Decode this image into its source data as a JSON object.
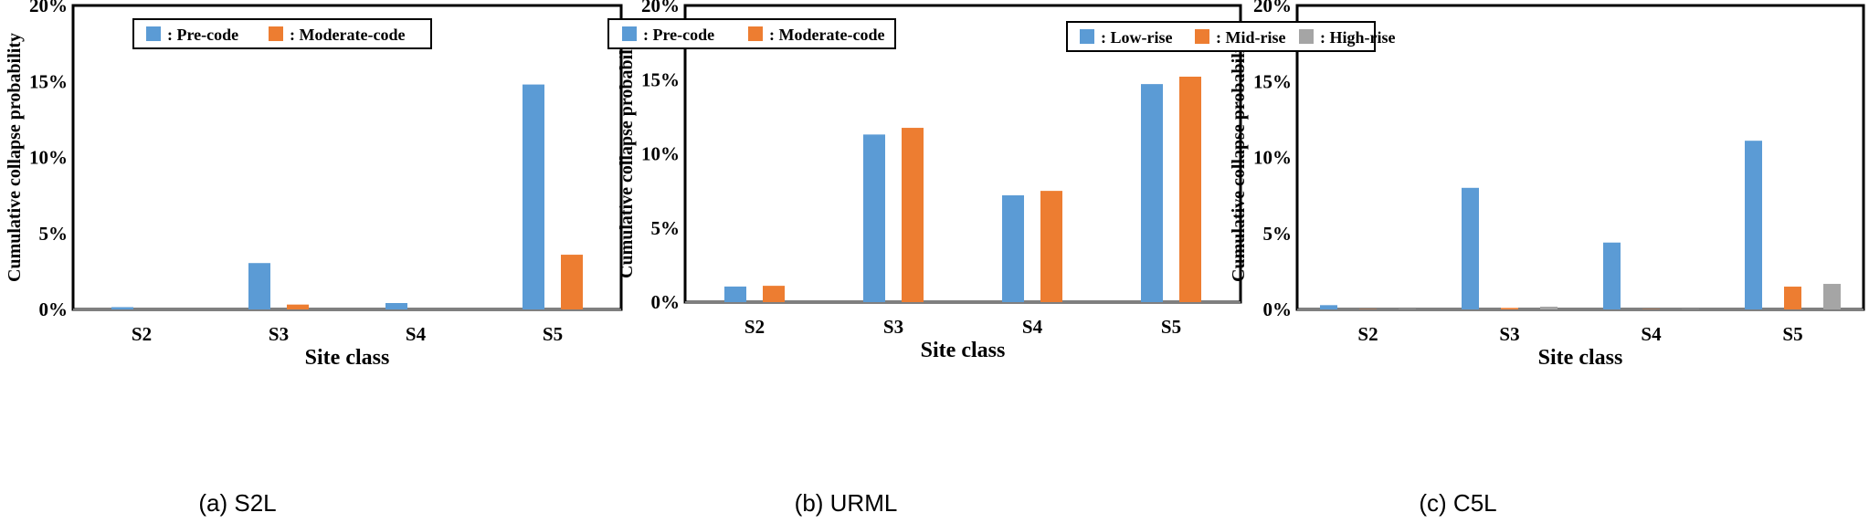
{
  "chart_data": [
    {
      "type": "bar",
      "caption": "(a) S2L",
      "xlabel": "Site class",
      "ylabel": "Cumulative collapse probability",
      "categories": [
        "S2",
        "S3",
        "S4",
        "S5"
      ],
      "ylim": [
        0,
        20
      ],
      "yticks": [
        "0%",
        "5%",
        "10%",
        "15%",
        "20%"
      ],
      "series": [
        {
          "name": ": Pre-code",
          "color": "#5B9BD5",
          "values": [
            0.15,
            3.05,
            0.42,
            14.8
          ]
        },
        {
          "name": ": Moderate-code",
          "color": "#ED7D31",
          "values": [
            0.0,
            0.32,
            0.0,
            3.6
          ]
        }
      ]
    },
    {
      "type": "bar",
      "caption": "(b) URML",
      "xlabel": "Site class",
      "ylabel": "Cumulative collapse probability",
      "categories": [
        "S2",
        "S3",
        "S4",
        "S5"
      ],
      "ylim": [
        0,
        20
      ],
      "yticks": [
        "0%",
        "5%",
        "10%",
        "15%",
        "20%"
      ],
      "series": [
        {
          "name": ": Pre-code",
          "color": "#5B9BD5",
          "values": [
            1.05,
            11.3,
            7.2,
            14.7
          ]
        },
        {
          "name": ": Moderate-code",
          "color": "#ED7D31",
          "values": [
            1.1,
            11.75,
            7.5,
            15.2
          ]
        }
      ]
    },
    {
      "type": "bar",
      "caption": "(c) C5L",
      "xlabel": "Site class",
      "ylabel": "Cumulative collapse probability",
      "categories": [
        "S2",
        "S3",
        "S4",
        "S5"
      ],
      "ylim": [
        0,
        20
      ],
      "yticks": [
        "0%",
        "5%",
        "10%",
        "15%",
        "20%"
      ],
      "series": [
        {
          "name": ": Low-rise",
          "color": "#5B9BD5",
          "values": [
            0.28,
            8.0,
            4.4,
            11.1
          ]
        },
        {
          "name": ": Mid-rise",
          "color": "#ED7D31",
          "values": [
            0.02,
            0.1,
            0.02,
            1.5
          ]
        },
        {
          "name": ": High-rise",
          "color": "#A5A5A5",
          "values": [
            0.03,
            0.18,
            0.02,
            1.68
          ]
        }
      ]
    }
  ]
}
